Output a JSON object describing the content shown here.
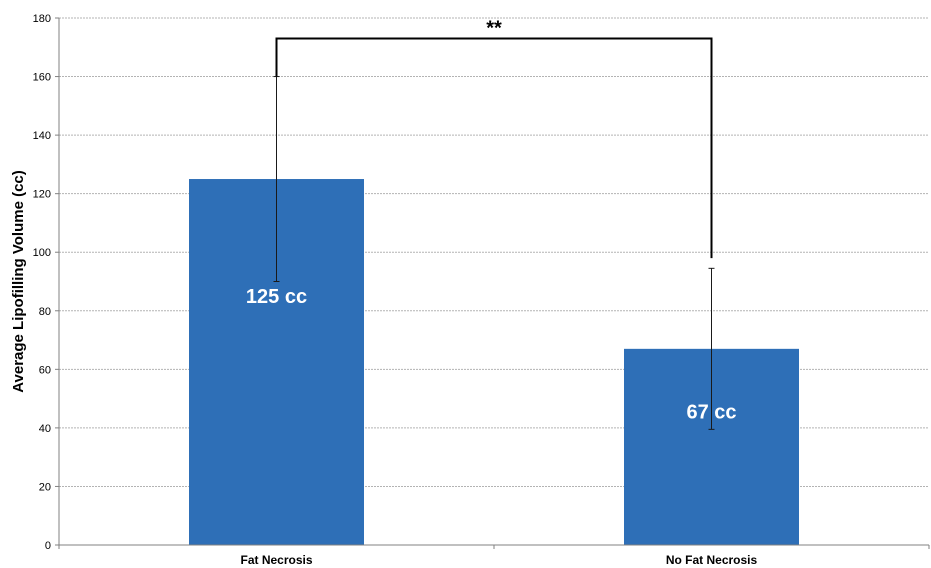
{
  "chart_data": {
    "type": "bar",
    "categories": [
      "Fat Necrosis",
      "No Fat Necrosis"
    ],
    "values": [
      125,
      67
    ],
    "error_bars": [
      {
        "low": 90,
        "high": 160
      },
      {
        "low": 39.5,
        "high": 94.5
      }
    ],
    "bar_labels": [
      "125 cc",
      "67 cc"
    ],
    "title": "",
    "xlabel": "",
    "ylabel": "Average Lipofilling Volume (cc)",
    "ylim": [
      0,
      180
    ],
    "yticks": [
      0,
      20,
      40,
      60,
      80,
      100,
      120,
      140,
      160,
      180
    ],
    "grid": true,
    "significance": {
      "label": "**",
      "bracket_top": 173,
      "left_end": 160,
      "right_end": 98
    },
    "colors": {
      "bar": "#2e6fb7",
      "grid": "#b3b3b3",
      "axis": "#808080",
      "error": "#1a1a1a"
    }
  }
}
